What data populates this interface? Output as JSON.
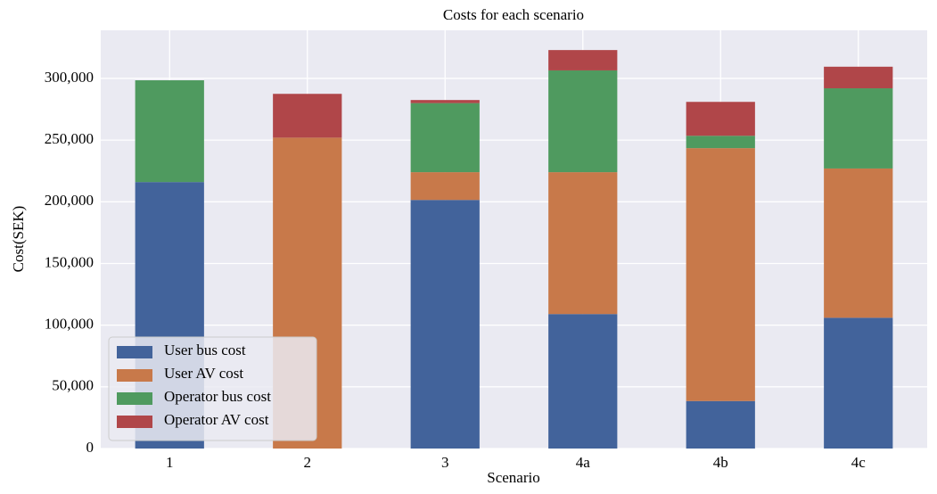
{
  "chart_data": {
    "type": "bar",
    "stacked": true,
    "title": "Costs for each scenario",
    "x_label": "Scenario",
    "y_label": "Cost(SEK)",
    "categories": [
      "1",
      "2",
      "3",
      "4a",
      "4b",
      "4c"
    ],
    "series": [
      {
        "name": "User bus cost",
        "color": "#42639b",
        "values": [
          216000,
          0,
          201500,
          109000,
          38500,
          106000
        ]
      },
      {
        "name": "User AV cost",
        "color": "#c8794a",
        "values": [
          0,
          252000,
          22500,
          115000,
          205000,
          121000
        ]
      },
      {
        "name": "Operator bus cost",
        "color": "#4f9a5f",
        "values": [
          82500,
          0,
          56000,
          82500,
          10000,
          65000
        ]
      },
      {
        "name": "Operator AV cost",
        "color": "#b04649",
        "values": [
          0,
          35500,
          2500,
          16500,
          27500,
          17500
        ]
      }
    ],
    "ylim": [
      0,
      339000
    ],
    "yticks": [
      0,
      {
        "value": 50000,
        "label": "50,000"
      },
      {
        "value": 100000,
        "label": "100,000"
      },
      {
        "value": 150000,
        "label": "150,000"
      },
      {
        "value": 200000,
        "label": "200,000"
      },
      {
        "value": 250000,
        "label": "250,000"
      },
      {
        "value": 300000,
        "label": "300,000"
      }
    ],
    "grid": true,
    "legend": "lower left"
  }
}
